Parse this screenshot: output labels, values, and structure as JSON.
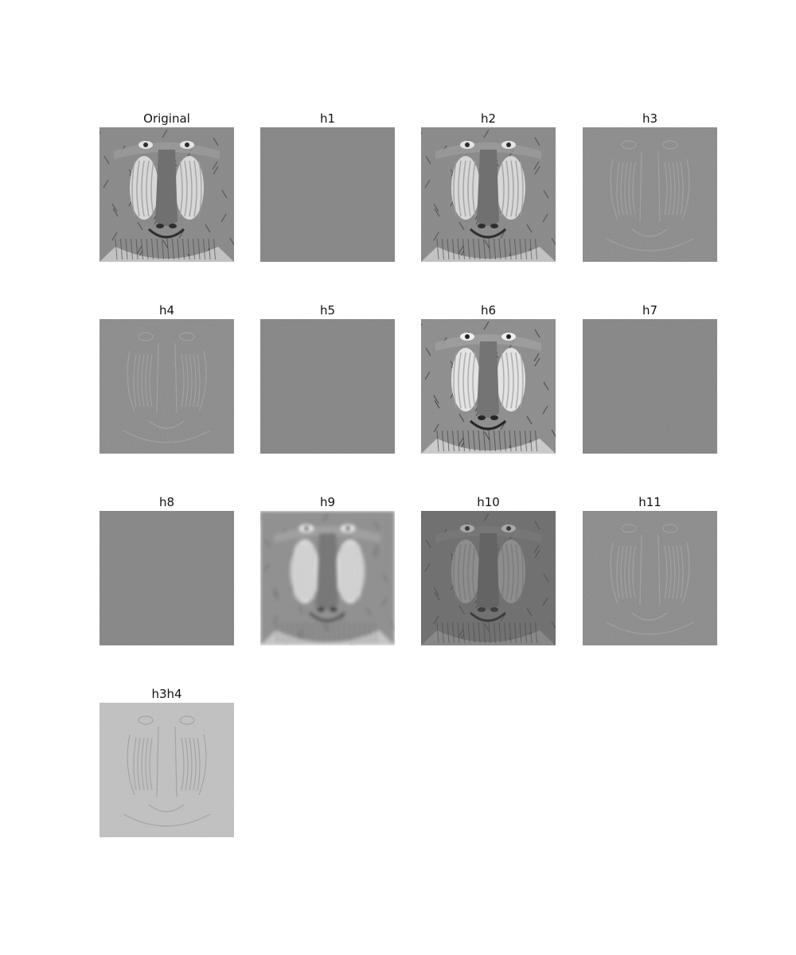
{
  "panels": [
    {
      "title": "Original",
      "kind": "photo"
    },
    {
      "title": "h1",
      "kind": "flat-noise"
    },
    {
      "title": "h2",
      "kind": "photo"
    },
    {
      "title": "h3",
      "kind": "emboss"
    },
    {
      "title": "h4",
      "kind": "emboss"
    },
    {
      "title": "h5",
      "kind": "flat-noise"
    },
    {
      "title": "h6",
      "kind": "photo-contrast"
    },
    {
      "title": "h7",
      "kind": "flat-noise"
    },
    {
      "title": "h8",
      "kind": "flat-noise"
    },
    {
      "title": "h9",
      "kind": "photo-blur"
    },
    {
      "title": "h10",
      "kind": "photo-dim"
    },
    {
      "title": "h11",
      "kind": "emboss"
    },
    {
      "title": "h3h4",
      "kind": "emboss-light"
    }
  ]
}
